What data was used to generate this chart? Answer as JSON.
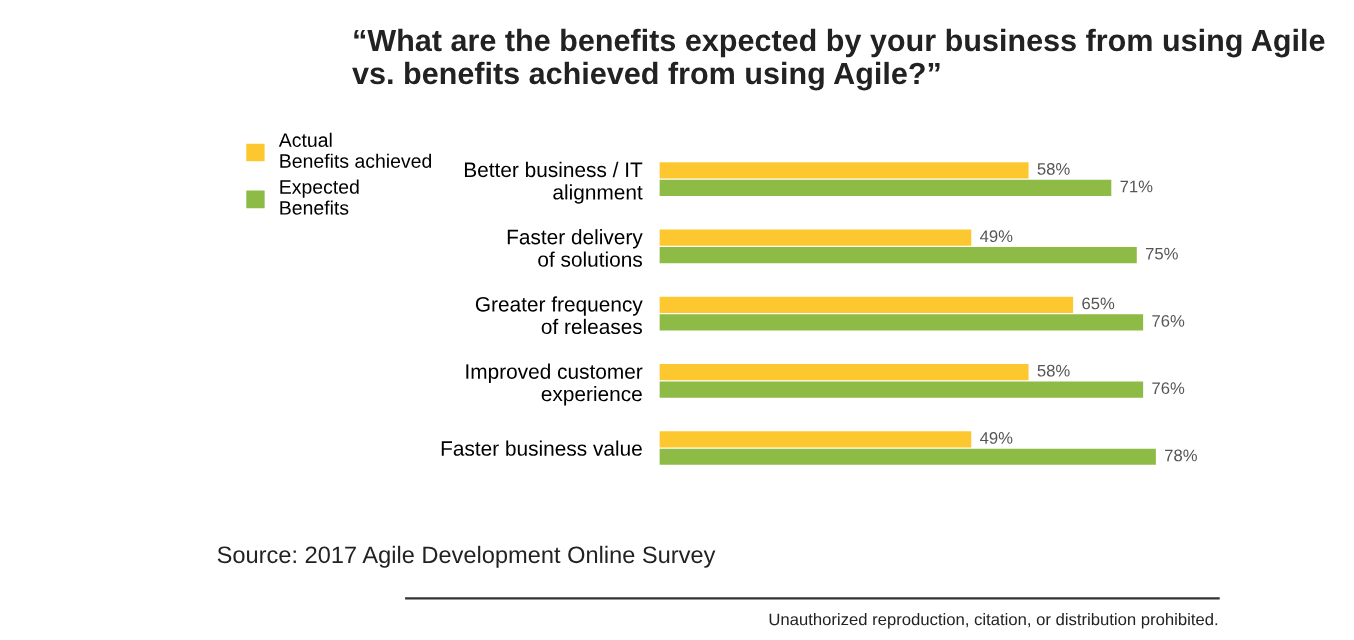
{
  "chart_data": {
    "type": "bar",
    "orientation": "horizontal",
    "title": "“What are the benefits expected by your business from using Agile\nvs. benefits achieved from using Agile?”",
    "categories": [
      "Better business / IT\nalignment",
      "Faster delivery\nof solutions",
      "Greater frequency\nof releases",
      "Improved customer\nexperience",
      "Faster business value"
    ],
    "series": [
      {
        "name": "Actual\nBenefits achieved",
        "color": "#fdc82f",
        "values": [
          58,
          49,
          65,
          58,
          49
        ],
        "value_labels": [
          "58%",
          "49%",
          "65%",
          "58%",
          "49%"
        ]
      },
      {
        "name": "Expected\nBenefits",
        "color": "#8dbb45",
        "values": [
          71,
          75,
          76,
          76,
          78
        ],
        "value_labels": [
          "71%",
          "75%",
          "76%",
          "76%",
          "78%"
        ]
      }
    ],
    "legend": "top left",
    "grid": false,
    "annotations": [
      "Source: 2017 Agile Development Online Survey",
      "Unauthorized reproduction, citation, or distribution prohibited."
    ]
  }
}
